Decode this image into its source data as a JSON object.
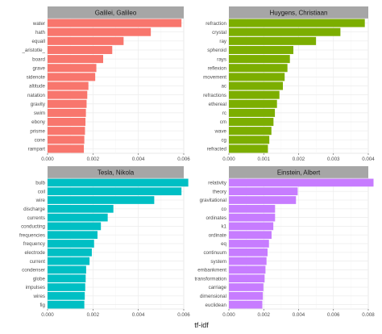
{
  "chart_data": {
    "type": "bar",
    "orientation": "horizontal",
    "xlabel": "tf-idf",
    "grid": true,
    "facets": [
      {
        "title": "Galilei, Galileo",
        "color": "#F8766D",
        "xlim": [
          0,
          0.006
        ],
        "xticks": [
          "0.000",
          "0.002",
          "0.004",
          "0.006"
        ],
        "categories": [
          "water",
          "hath",
          "equall",
          "_aristotle_",
          "board",
          "grave",
          "sidenote",
          "altitude",
          "natation",
          "gravity",
          "swim",
          "ebony",
          "prisme",
          "cone",
          "rampart"
        ],
        "values": [
          0.0059,
          0.00455,
          0.00335,
          0.00285,
          0.00245,
          0.00215,
          0.0021,
          0.0018,
          0.00175,
          0.00172,
          0.00169,
          0.00167,
          0.00165,
          0.00162,
          0.0016
        ]
      },
      {
        "title": "Huygens, Christiaan",
        "color": "#7CAE00",
        "xlim": [
          0,
          0.004
        ],
        "xticks": [
          "0.000",
          "0.001",
          "0.002",
          "0.003",
          "0.004"
        ],
        "categories": [
          "refraction",
          "crystal",
          "ray",
          "spheroid",
          "rays",
          "reflexion",
          "movement",
          "ac",
          "refractions",
          "ethereal",
          "rc",
          "cm",
          "wave",
          "cg",
          "refracted"
        ],
        "values": [
          0.0039,
          0.0032,
          0.0025,
          0.00185,
          0.00175,
          0.00168,
          0.0016,
          0.00155,
          0.00145,
          0.00138,
          0.00132,
          0.00128,
          0.00122,
          0.00116,
          0.00112
        ]
      },
      {
        "title": "Tesla, Nikola",
        "color": "#00BFC4",
        "xlim": [
          0,
          0.006
        ],
        "xticks": [
          "0.000",
          "0.002",
          "0.004",
          "0.006"
        ],
        "categories": [
          "bulb",
          "coil",
          "wire",
          "discharge",
          "currents",
          "conducting",
          "frequencies",
          "frequency",
          "electrode",
          "current",
          "condenser",
          "globe",
          "impulses",
          "wires",
          "fig"
        ],
        "values": [
          0.0062,
          0.0059,
          0.0047,
          0.0029,
          0.00265,
          0.00235,
          0.0022,
          0.00205,
          0.00195,
          0.00185,
          0.0017,
          0.00168,
          0.00166,
          0.00164,
          0.00162
        ]
      },
      {
        "title": "Einstein, Albert",
        "color": "#C77CFF",
        "xlim": [
          0,
          0.008
        ],
        "xticks": [
          "0.000",
          "0.002",
          "0.004",
          "0.006",
          "0.008"
        ],
        "categories": [
          "relativity",
          "theory",
          "gravitational",
          "co",
          "ordinates",
          "k1",
          "ordinate",
          "eq",
          "continuum",
          "system",
          "embankment",
          "transformation",
          "carriage",
          "dimensional",
          "euclidean"
        ],
        "values": [
          0.0083,
          0.00395,
          0.00385,
          0.00265,
          0.00265,
          0.00255,
          0.00245,
          0.0023,
          0.00222,
          0.00216,
          0.0021,
          0.00205,
          0.00198,
          0.00195,
          0.00192
        ]
      }
    ]
  }
}
